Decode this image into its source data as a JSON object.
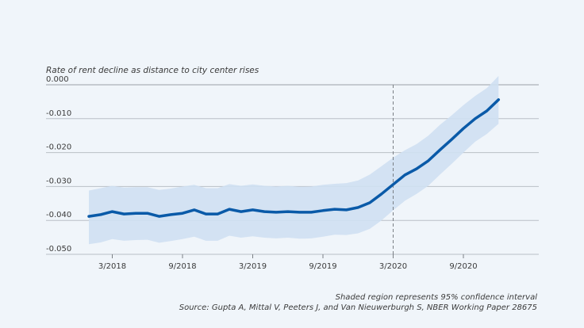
{
  "chart_data": {
    "type": "line",
    "title": "",
    "ylabel": "Rate of rent decline as distance to city center rises",
    "xlabel": "",
    "ylim": [
      -0.05,
      0.0
    ],
    "yticks": [
      "0.000",
      "-0.010",
      "-0.020",
      "-0.030",
      "-0.040",
      "-0.050"
    ],
    "ytick_values": [
      0.0,
      -0.01,
      -0.02,
      -0.03,
      -0.04,
      -0.05
    ],
    "xticks": [
      "3/2018",
      "9/2018",
      "3/2019",
      "9/2019",
      "3/2020",
      "9/2020"
    ],
    "xtick_month_index": [
      2,
      8,
      14,
      20,
      26,
      32
    ],
    "x_month_range": [
      0,
      38
    ],
    "grid": true,
    "reference_line": {
      "month_index": 26,
      "label": "3/2020",
      "style": "dashed"
    },
    "x": [
      "1/2018",
      "2/2018",
      "3/2018",
      "4/2018",
      "5/2018",
      "6/2018",
      "7/2018",
      "8/2018",
      "9/2018",
      "10/2018",
      "11/2018",
      "12/2018",
      "1/2019",
      "2/2019",
      "3/2019",
      "4/2019",
      "5/2019",
      "6/2019",
      "7/2019",
      "8/2019",
      "9/2019",
      "10/2019",
      "11/2019",
      "12/2019",
      "1/2020",
      "2/2020",
      "3/2020",
      "4/2020",
      "5/2020",
      "6/2020",
      "7/2020",
      "8/2020",
      "9/2020",
      "10/2020",
      "11/2020",
      "12/2020"
    ],
    "series": [
      {
        "name": "Estimate",
        "color": "#0a5aa8",
        "values": [
          -0.0388,
          -0.0383,
          -0.0374,
          -0.0381,
          -0.0379,
          -0.0379,
          -0.0388,
          -0.0383,
          -0.0379,
          -0.0369,
          -0.0381,
          -0.0381,
          -0.0367,
          -0.0374,
          -0.0369,
          -0.0374,
          -0.0376,
          -0.0374,
          -0.0376,
          -0.0376,
          -0.0371,
          -0.0367,
          -0.0369,
          -0.0362,
          -0.0348,
          -0.0322,
          -0.0294,
          -0.0266,
          -0.0248,
          -0.0224,
          -0.0192,
          -0.0161,
          -0.0129,
          -0.01,
          -0.0077,
          -0.0044
        ]
      },
      {
        "name": "95% CI upper",
        "color": "#cfe0f2",
        "values": [
          -0.0312,
          -0.0305,
          -0.0298,
          -0.0303,
          -0.0302,
          -0.0302,
          -0.031,
          -0.0306,
          -0.03,
          -0.0295,
          -0.0305,
          -0.0305,
          -0.0293,
          -0.0298,
          -0.0294,
          -0.0298,
          -0.03,
          -0.0298,
          -0.0301,
          -0.03,
          -0.0295,
          -0.0292,
          -0.029,
          -0.0282,
          -0.0265,
          -0.024,
          -0.0215,
          -0.0193,
          -0.0175,
          -0.015,
          -0.0118,
          -0.009,
          -0.006,
          -0.0033,
          -0.001,
          0.0026
        ]
      },
      {
        "name": "95% CI lower",
        "color": "#cfe0f2",
        "values": [
          -0.047,
          -0.0465,
          -0.0455,
          -0.046,
          -0.0458,
          -0.0457,
          -0.0466,
          -0.0461,
          -0.0455,
          -0.0448,
          -0.046,
          -0.046,
          -0.0445,
          -0.0451,
          -0.0447,
          -0.0451,
          -0.0453,
          -0.0451,
          -0.0454,
          -0.0453,
          -0.0448,
          -0.0442,
          -0.0443,
          -0.0438,
          -0.0425,
          -0.04,
          -0.037,
          -0.0342,
          -0.0322,
          -0.0298,
          -0.0265,
          -0.0233,
          -0.02,
          -0.0168,
          -0.0145,
          -0.0115
        ]
      }
    ],
    "notes": [
      "Shaded region represents 95% confidence interval",
      "Source:  Gupta A, Mittal V, Peeters J, and Van Nieuwerburgh S, NBER Working Paper 28675"
    ]
  },
  "colors": {
    "background": "#f0f5fa",
    "line": "#0a5aa8",
    "band": "#cfe0f2",
    "grid": "#b9bfc6",
    "text": "#3a3a3a"
  }
}
